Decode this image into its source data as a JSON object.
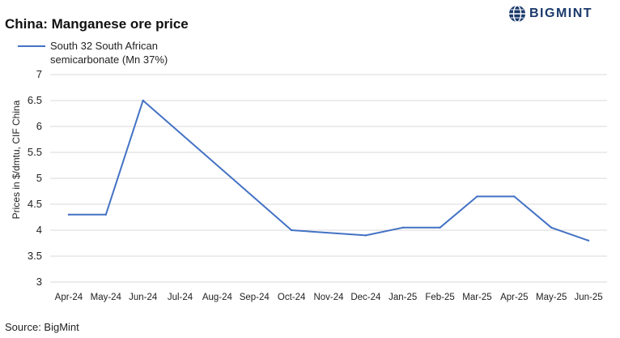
{
  "header": {
    "title": "China: Manganese ore price",
    "logo_text": "BIGMINT"
  },
  "footer": {
    "source": "Source:  BigMint"
  },
  "colors": {
    "series": "#4472c4",
    "grid": "#d9d9d9",
    "logo": "#1b3a6b"
  },
  "chart_data": {
    "type": "line",
    "title": "China: Manganese ore price",
    "xlabel": "",
    "ylabel": "Prices in $/dmtu, CIF China",
    "ylim": [
      3,
      7
    ],
    "yticks": [
      "3",
      "3.5",
      "4",
      "4.5",
      "5",
      "5.5",
      "6",
      "6.5",
      "7"
    ],
    "grid": true,
    "legend": "top-left",
    "categories": [
      "Apr-24",
      "May-24",
      "Jun-24",
      "Jul-24",
      "Aug-24",
      "Sep-24",
      "Oct-24",
      "Nov-24",
      "Dec-24",
      "Jan-25",
      "Feb-25",
      "Mar-25",
      "Apr-25",
      "May-25",
      "Jun-25"
    ],
    "series": [
      {
        "name": "South 32 South African semicarbonate (Mn 37%)",
        "values": [
          4.3,
          4.3,
          6.5,
          null,
          null,
          null,
          4.0,
          null,
          3.9,
          4.05,
          4.05,
          4.65,
          4.65,
          4.05,
          3.8
        ]
      }
    ]
  }
}
